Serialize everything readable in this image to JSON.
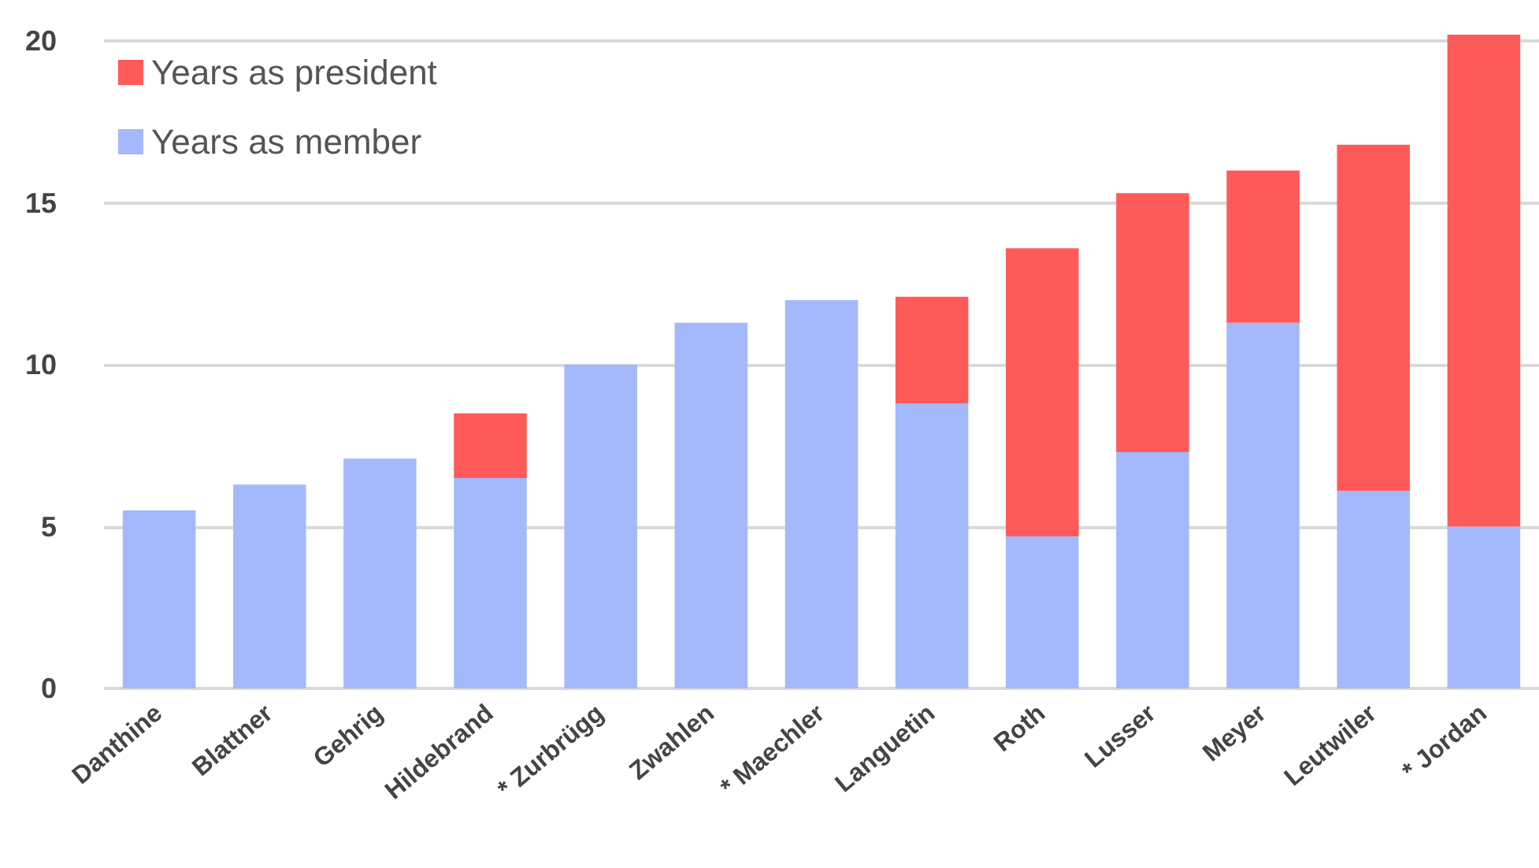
{
  "chart_data": {
    "type": "bar",
    "stacked": true,
    "categories": [
      "Danthine",
      "Blattner",
      "Gehrig",
      "Hildebrand",
      "* Zurbrügg",
      "Zwahlen",
      "* Maechler",
      "Languetin",
      "Roth",
      "Lusser",
      "Meyer",
      "Leutwiler",
      "* Jordan"
    ],
    "series": [
      {
        "name": "Years as member",
        "color": "#a3b9fb",
        "values": [
          5.5,
          6.3,
          7.1,
          6.5,
          10.0,
          11.3,
          12.0,
          8.8,
          4.7,
          7.3,
          11.3,
          6.1,
          5.0
        ]
      },
      {
        "name": "Years as president",
        "color": "#ff5a5a",
        "values": [
          null,
          null,
          null,
          2.0,
          null,
          null,
          null,
          3.3,
          8.9,
          8.0,
          4.7,
          10.7,
          15.2
        ]
      }
    ],
    "ylim": [
      0,
      20.2
    ],
    "yticks": [
      0,
      5,
      10,
      15,
      20
    ],
    "grid": "y",
    "legend": "top left"
  }
}
